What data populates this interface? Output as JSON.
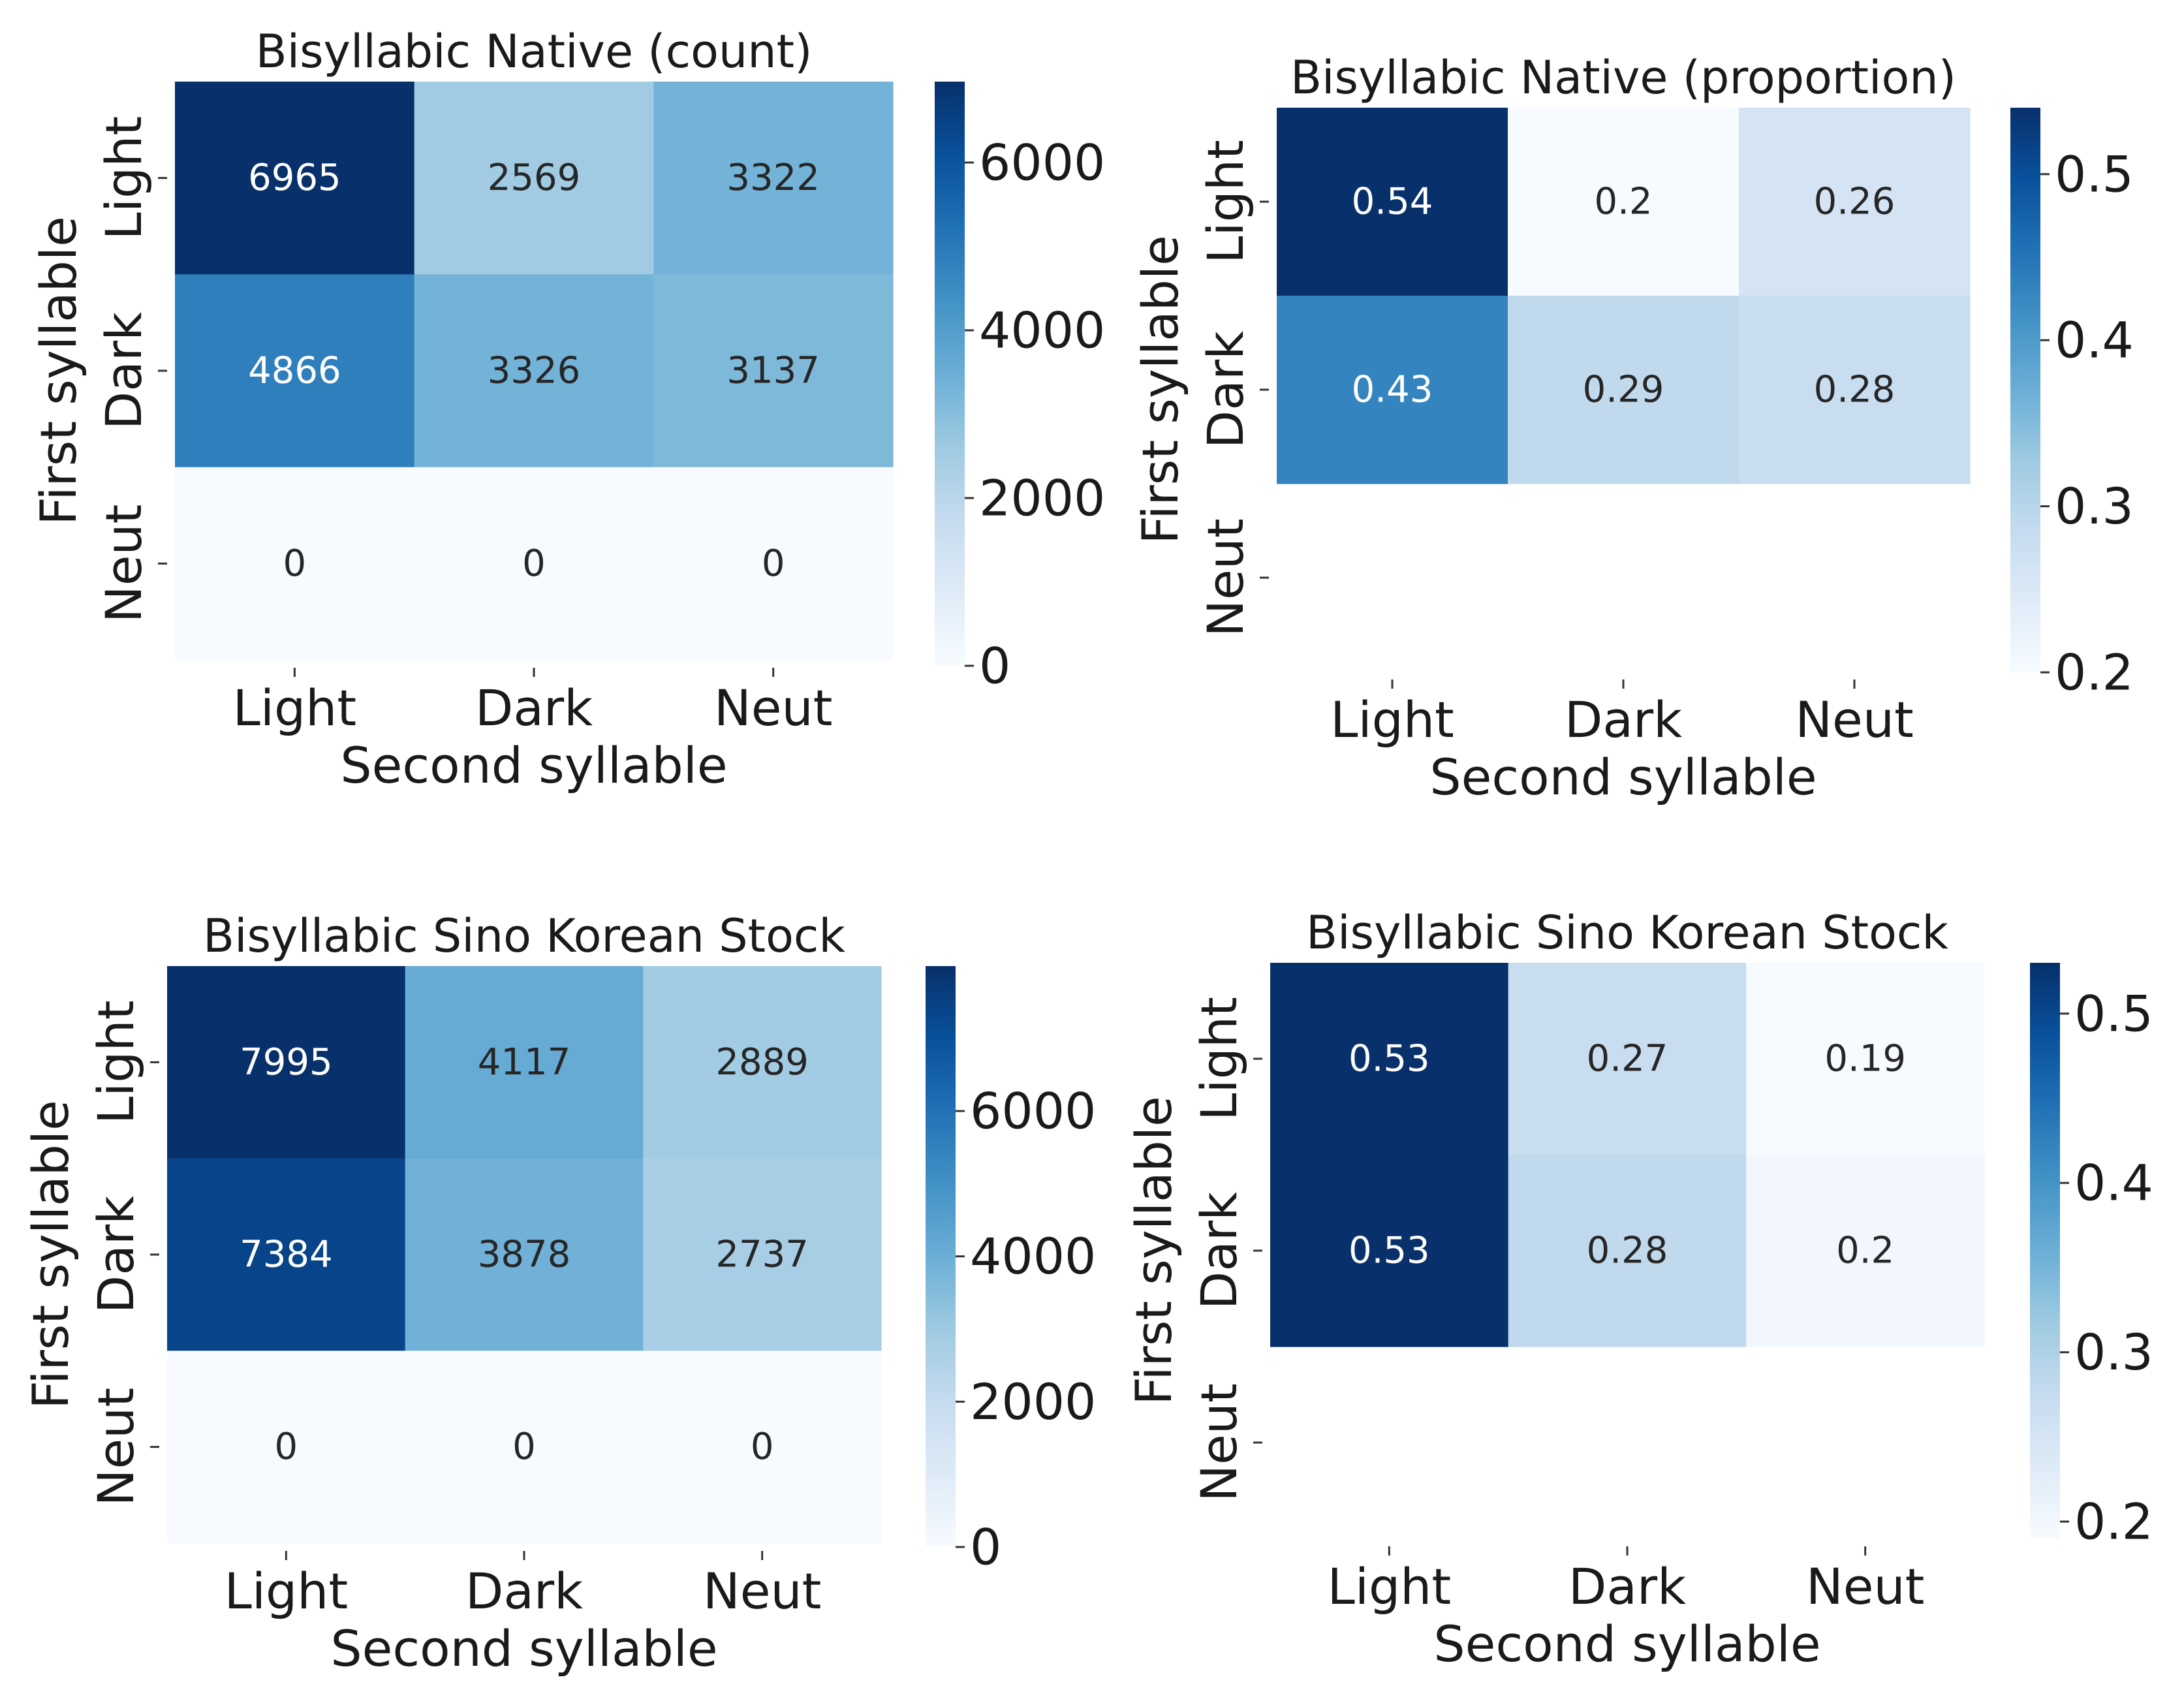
{
  "chart_data": [
    {
      "type": "heatmap",
      "title": "Bisyllabic Native (count)",
      "xlabel": "Second syllable",
      "ylabel": "First syllable",
      "x_categories": [
        "Light",
        "Dark",
        "Neut"
      ],
      "y_categories": [
        "Light",
        "Dark",
        "Neut"
      ],
      "values": [
        [
          6965,
          2569,
          3322
        ],
        [
          4866,
          3326,
          3137
        ],
        [
          0,
          0,
          0
        ]
      ],
      "cell_labels": [
        [
          "6965",
          "2569",
          "3322"
        ],
        [
          "4866",
          "3326",
          "3137"
        ],
        [
          "0",
          "0",
          "0"
        ]
      ],
      "colormap": "Blues",
      "vmin": 0,
      "vmax": 6965,
      "colorbar_ticks": [
        0,
        2000,
        4000,
        6000
      ],
      "colorbar_labels": [
        "0",
        "2000",
        "4000",
        "6000"
      ]
    },
    {
      "type": "heatmap",
      "title": "Bisyllabic Native (proportion)",
      "xlabel": "Second syllable",
      "ylabel": "First syllable",
      "x_categories": [
        "Light",
        "Dark",
        "Neut"
      ],
      "y_categories": [
        "Light",
        "Dark",
        "Neut"
      ],
      "values": [
        [
          0.54,
          0.2,
          0.26
        ],
        [
          0.43,
          0.29,
          0.28
        ],
        [
          null,
          null,
          null
        ]
      ],
      "cell_labels": [
        [
          "0.54",
          "0.2",
          "0.26"
        ],
        [
          "0.43",
          "0.29",
          "0.28"
        ],
        [
          "",
          "",
          ""
        ]
      ],
      "colormap": "Blues",
      "vmin": 0.2,
      "vmax": 0.54,
      "colorbar_ticks": [
        0.2,
        0.3,
        0.4,
        0.5
      ],
      "colorbar_labels": [
        "0.2",
        "0.3",
        "0.4",
        "0.5"
      ]
    },
    {
      "type": "heatmap",
      "title": "Bisyllabic Sino Korean Stock",
      "xlabel": "Second syllable",
      "ylabel": "First syllable",
      "x_categories": [
        "Light",
        "Dark",
        "Neut"
      ],
      "y_categories": [
        "Light",
        "Dark",
        "Neut"
      ],
      "values": [
        [
          7995,
          4117,
          2889
        ],
        [
          7384,
          3878,
          2737
        ],
        [
          0,
          0,
          0
        ]
      ],
      "cell_labels": [
        [
          "7995",
          "4117",
          "2889"
        ],
        [
          "7384",
          "3878",
          "2737"
        ],
        [
          "0",
          "0",
          "0"
        ]
      ],
      "colormap": "Blues",
      "vmin": 0,
      "vmax": 7995,
      "colorbar_ticks": [
        0,
        2000,
        4000,
        6000
      ],
      "colorbar_labels": [
        "0",
        "2000",
        "4000",
        "6000"
      ]
    },
    {
      "type": "heatmap",
      "title": "Bisyllabic Sino Korean Stock",
      "xlabel": "Second syllable",
      "ylabel": "First syllable",
      "x_categories": [
        "Light",
        "Dark",
        "Neut"
      ],
      "y_categories": [
        "Light",
        "Dark",
        "Neut"
      ],
      "values": [
        [
          0.53,
          0.27,
          0.19
        ],
        [
          0.53,
          0.28,
          0.2
        ],
        [
          null,
          null,
          null
        ]
      ],
      "cell_labels": [
        [
          "0.53",
          "0.27",
          "0.19"
        ],
        [
          "0.53",
          "0.28",
          "0.2"
        ],
        [
          "",
          "",
          ""
        ]
      ],
      "colormap": "Blues",
      "vmin": 0.19,
      "vmax": 0.53,
      "colorbar_ticks": [
        0.2,
        0.3,
        0.4,
        0.5
      ],
      "colorbar_labels": [
        "0.2",
        "0.3",
        "0.4",
        "0.5"
      ]
    }
  ]
}
